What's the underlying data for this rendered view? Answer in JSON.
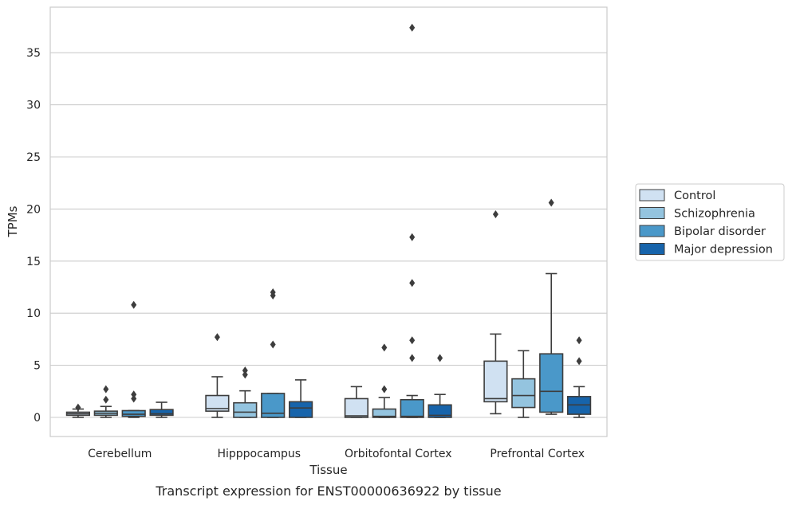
{
  "chart_data": {
    "type": "box",
    "title": "",
    "xlabel": "Tissue",
    "ylabel": "TPMs",
    "caption": "Transcript expression for ENST00000636922 by tissue",
    "ylim": [
      -1.8,
      38.8
    ],
    "yticks": [
      0,
      5,
      10,
      15,
      20,
      25,
      30,
      35
    ],
    "grid": "horizontal",
    "legend_position": "right",
    "categories": [
      "Cerebellum",
      "Hipppocampus",
      "Orbitofontal Cortex",
      "Prefrontal Cortex"
    ],
    "series": [
      {
        "name": "Control",
        "color": "#d0e1f2",
        "boxes": [
          {
            "whislo": 0,
            "q1": 0.2,
            "med": 0.35,
            "q3": 0.5,
            "whishi": 0.8,
            "fliers": [
              0.95
            ]
          },
          {
            "whislo": 0,
            "q1": 0.6,
            "med": 0.85,
            "q3": 2.1,
            "whishi": 3.9,
            "fliers": [
              7.7
            ]
          },
          {
            "whislo": 0,
            "q1": 0,
            "med": 0.15,
            "q3": 1.8,
            "whishi": 2.95,
            "fliers": []
          },
          {
            "whislo": 0.35,
            "q1": 1.5,
            "med": 1.8,
            "q3": 5.4,
            "whishi": 8.0,
            "fliers": [
              19.5
            ]
          }
        ]
      },
      {
        "name": "Schizophrenia",
        "color": "#94c4df",
        "boxes": [
          {
            "whislo": 0,
            "q1": 0.2,
            "med": 0.4,
            "q3": 0.6,
            "whishi": 1.05,
            "fliers": [
              1.7,
              2.7
            ]
          },
          {
            "whislo": 0,
            "q1": 0,
            "med": 0.5,
            "q3": 1.4,
            "whishi": 2.55,
            "fliers": [
              4.1,
              4.5
            ]
          },
          {
            "whislo": 0,
            "q1": 0,
            "med": 0.1,
            "q3": 0.8,
            "whishi": 1.9,
            "fliers": [
              2.7,
              6.7
            ]
          },
          {
            "whislo": 0,
            "q1": 0.95,
            "med": 2.1,
            "q3": 3.7,
            "whishi": 6.4,
            "fliers": []
          }
        ]
      },
      {
        "name": "Bipolar disorder",
        "color": "#4a98c9",
        "boxes": [
          {
            "whislo": 0,
            "q1": 0.1,
            "med": 0.3,
            "q3": 0.65,
            "whishi": 0.65,
            "fliers": [
              1.8,
              2.2,
              10.8
            ]
          },
          {
            "whislo": 0,
            "q1": 0,
            "med": 0.4,
            "q3": 2.3,
            "whishi": 2.3,
            "fliers": [
              7.0,
              11.7,
              12.0
            ]
          },
          {
            "whislo": 0,
            "q1": 0,
            "med": 0.1,
            "q3": 1.7,
            "whishi": 2.1,
            "fliers": [
              5.7,
              7.4,
              12.9,
              17.3,
              37.4
            ]
          },
          {
            "whislo": 0.3,
            "q1": 0.5,
            "med": 2.5,
            "q3": 6.1,
            "whishi": 13.8,
            "fliers": [
              20.6
            ]
          }
        ]
      },
      {
        "name": "Major depression",
        "color": "#1764ab",
        "boxes": [
          {
            "whislo": 0,
            "q1": 0.2,
            "med": 0.35,
            "q3": 0.75,
            "whishi": 1.45,
            "fliers": []
          },
          {
            "whislo": 0,
            "q1": 0,
            "med": 0.9,
            "q3": 1.5,
            "whishi": 3.6,
            "fliers": []
          },
          {
            "whislo": 0,
            "q1": 0,
            "med": 0.2,
            "q3": 1.2,
            "whishi": 2.2,
            "fliers": [
              5.7
            ]
          },
          {
            "whislo": 0,
            "q1": 0.3,
            "med": 1.2,
            "q3": 2.0,
            "whishi": 2.95,
            "fliers": [
              5.4,
              7.4
            ]
          }
        ]
      }
    ]
  }
}
